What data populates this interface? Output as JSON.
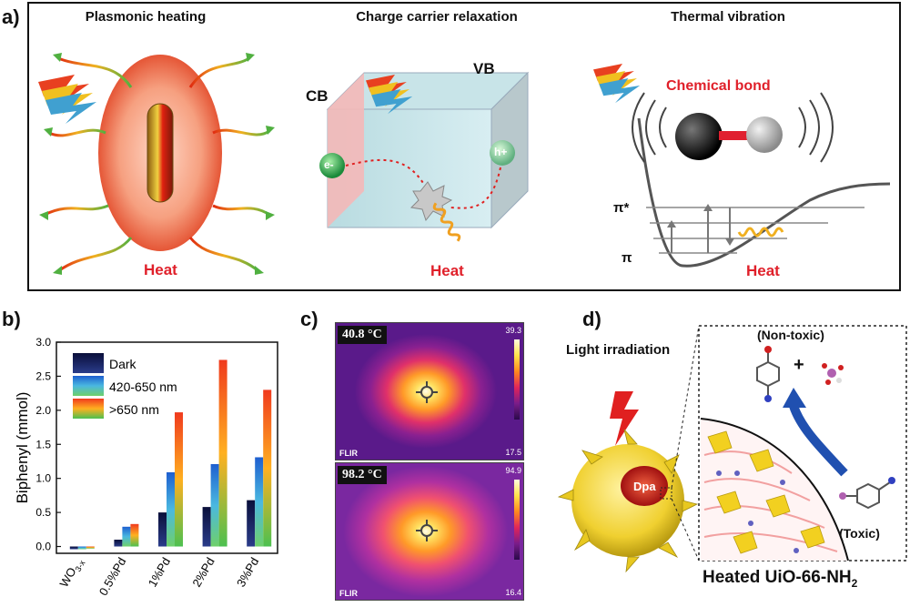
{
  "panels": {
    "a": {
      "letter": "a)",
      "plasmonic": {
        "title": "Plasmonic heating",
        "heat": "Heat"
      },
      "charge": {
        "title": "Charge carrier relaxation",
        "cb": "CB",
        "vb": "VB",
        "electron": "e-",
        "hole": "h+",
        "heat": "Heat"
      },
      "thermal": {
        "title": "Thermal vibration",
        "bond": "Chemical bond",
        "pi_star": "π*",
        "pi": "π",
        "heat": "Heat"
      }
    },
    "b": {
      "letter": "b)"
    },
    "c": {
      "letter": "c)",
      "top": {
        "temp": "40.8 °C",
        "max": "39.3",
        "min": "17.5",
        "brand": "FLIR"
      },
      "bottom": {
        "temp": "98.2 °C",
        "max": "94.9",
        "min": "16.4",
        "brand": "FLIR"
      }
    },
    "d": {
      "letter": "d)",
      "light": "Light irradiation",
      "dpa": "Dpa",
      "nontoxic": "(Non-toxic)",
      "plus": "+",
      "toxic": "(Toxic)",
      "caption_main": "Heated UiO-66-NH",
      "caption_sub": "2"
    }
  },
  "chart_data": {
    "type": "bar",
    "ylabel": "Biphenyl (mmol)",
    "ylim": [
      -0.1,
      3.0
    ],
    "yticks": [
      "0.0",
      "0.5",
      "1.0",
      "1.5",
      "2.0",
      "2.5",
      "3.0"
    ],
    "categories": [
      "WO3-x",
      "0.5%Pd",
      "1%Pd",
      "2%Pd",
      "3%Pd"
    ],
    "category_main": [
      "WO",
      "0.5%Pd",
      "1%Pd",
      "2%Pd",
      "3%Pd"
    ],
    "category_sub": [
      "3-x",
      "",
      "",
      "",
      ""
    ],
    "series": [
      {
        "name": "Dark",
        "values": [
          -0.04,
          0.1,
          0.5,
          0.58,
          0.68
        ],
        "colors": [
          "#0a0f3a",
          "#2a3c8a"
        ]
      },
      {
        "name": "420-650 nm",
        "values": [
          -0.04,
          0.29,
          1.09,
          1.21,
          1.31
        ],
        "colors": [
          "#1e5fd0",
          "#4ab8e0",
          "#6fd06a"
        ]
      },
      {
        "name": ">650 nm",
        "values": [
          -0.03,
          0.33,
          1.97,
          2.74,
          2.3
        ],
        "colors": [
          "#f03a1e",
          "#ffb020",
          "#4cc050"
        ]
      }
    ]
  }
}
